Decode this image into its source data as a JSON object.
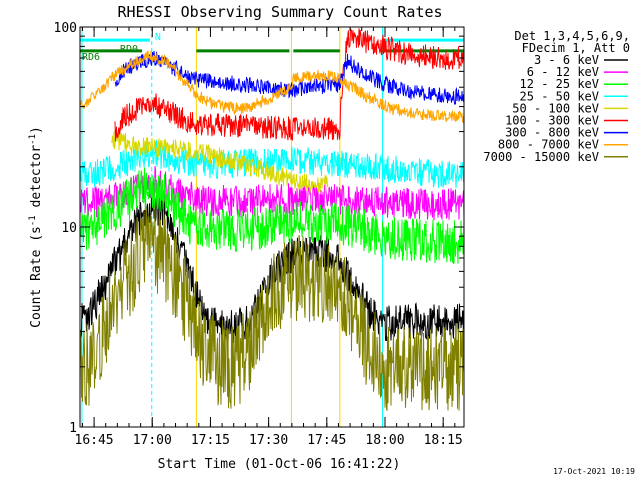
{
  "chart_data": {
    "type": "line",
    "title": "RHESSI Observing Summary Count Rates",
    "xlabel": "Start Time (01-Oct-06 16:41:22)",
    "ylabel_parts": [
      "Count Rate (s",
      "-1",
      " detector",
      "-1",
      ")"
    ],
    "y_scale": "log",
    "ylim": [
      1,
      100
    ],
    "xlim_minutes": [
      0,
      99
    ],
    "y_tick_labels": [
      "1",
      "10",
      "100"
    ],
    "x_ticks": [
      {
        "min": 3.63,
        "label": "16:45"
      },
      {
        "min": 18.63,
        "label": "17:00"
      },
      {
        "min": 33.63,
        "label": "17:15"
      },
      {
        "min": 48.63,
        "label": "17:30"
      },
      {
        "min": 63.63,
        "label": "17:45"
      },
      {
        "min": 78.63,
        "label": "18:00"
      },
      {
        "min": 93.63,
        "label": "18:15"
      }
    ],
    "legend_header": [
      "Det 1,3,4,5,6,9,",
      "FDecim 1, Att 0"
    ],
    "series": [
      {
        "name": "3 - 6 keV",
        "color": "#000000",
        "values": [
          [
            0,
            3.3
          ],
          [
            3,
            3.8
          ],
          [
            7,
            5.4
          ],
          [
            12,
            8.5
          ],
          [
            16,
            11.5
          ],
          [
            19,
            12.8
          ],
          [
            22,
            12
          ],
          [
            26,
            7.5
          ],
          [
            30,
            4.5
          ],
          [
            33,
            3.3
          ],
          [
            36,
            3.2
          ],
          [
            40,
            3.1
          ],
          [
            44,
            3.5
          ],
          [
            48,
            4.8
          ],
          [
            52,
            6.6
          ],
          [
            56,
            7.4
          ],
          [
            62,
            7.4
          ],
          [
            66,
            7.2
          ],
          [
            70,
            5.2
          ],
          [
            74,
            3.9
          ],
          [
            78,
            3.3
          ],
          [
            82,
            3.3
          ],
          [
            88,
            3.4
          ],
          [
            94,
            3.4
          ],
          [
            99,
            3.4
          ]
        ]
      },
      {
        "name": "6 - 12 keV",
        "color": "#ff00ff",
        "values": [
          [
            0,
            13
          ],
          [
            6,
            13.5
          ],
          [
            12,
            14.8
          ],
          [
            16,
            16
          ],
          [
            19,
            17
          ],
          [
            22,
            16
          ],
          [
            26,
            14.5
          ],
          [
            30,
            13.8
          ],
          [
            34,
            13.5
          ],
          [
            45,
            13.5
          ],
          [
            52,
            13.8
          ],
          [
            60,
            13.8
          ],
          [
            68,
            13.7
          ],
          [
            76,
            13.4
          ],
          [
            84,
            13.2
          ],
          [
            90,
            13
          ],
          [
            99,
            13
          ]
        ]
      },
      {
        "name": "12 - 25 keV",
        "color": "#00ff00",
        "values": [
          [
            0,
            9.2
          ],
          [
            4,
            10
          ],
          [
            9,
            12
          ],
          [
            14,
            14.5
          ],
          [
            18,
            16
          ],
          [
            21,
            15
          ],
          [
            25,
            12
          ],
          [
            29,
            10.2
          ],
          [
            34,
            9.7
          ],
          [
            45,
            9.8
          ],
          [
            52,
            10.2
          ],
          [
            58,
            10.5
          ],
          [
            66,
            10.5
          ],
          [
            72,
            9.8
          ],
          [
            78,
            9
          ],
          [
            86,
            8.6
          ],
          [
            92,
            8.5
          ],
          [
            99,
            8.4
          ]
        ]
      },
      {
        "name": "25 - 50 keV",
        "color": "#00ffff",
        "values": [
          [
            0,
            18
          ],
          [
            6,
            19
          ],
          [
            12,
            21
          ],
          [
            16,
            22.5
          ],
          [
            19,
            23.5
          ],
          [
            22,
            22.5
          ],
          [
            28,
            21
          ],
          [
            34,
            20.5
          ],
          [
            45,
            21
          ],
          [
            55,
            21.5
          ],
          [
            65,
            21
          ],
          [
            75,
            20
          ],
          [
            85,
            19
          ],
          [
            99,
            18
          ]
        ]
      },
      {
        "name": "50 - 100 keV",
        "color": "#d8d800",
        "values": [
          [
            8,
            28
          ],
          [
            10,
            27
          ],
          [
            14,
            25.5
          ],
          [
            19,
            25
          ],
          [
            24,
            24.5
          ],
          [
            28,
            24
          ],
          [
            30,
            24
          ],
          [
            55,
            17
          ],
          [
            57,
            16.5
          ],
          [
            64,
            16.5
          ]
        ]
      },
      {
        "name": "100 - 300 keV",
        "color": "#ff0000",
        "values": [
          [
            9,
            30
          ],
          [
            12,
            36
          ],
          [
            16,
            40
          ],
          [
            19,
            41
          ],
          [
            22,
            39
          ],
          [
            26,
            35
          ],
          [
            29,
            33
          ],
          [
            55,
            31
          ],
          [
            60,
            31
          ],
          [
            65,
            31
          ],
          [
            67,
            31
          ],
          [
            69,
            90
          ],
          [
            72,
            86
          ],
          [
            76,
            82
          ],
          [
            80,
            78
          ],
          [
            84,
            74
          ],
          [
            88,
            72
          ],
          [
            92,
            70
          ],
          [
            96,
            70
          ],
          [
            99,
            70
          ]
        ]
      },
      {
        "name": "300 - 800 keV",
        "color": "#0000ff",
        "values": [
          [
            9,
            54
          ],
          [
            12,
            62
          ],
          [
            16,
            68
          ],
          [
            19,
            70
          ],
          [
            22,
            66
          ],
          [
            26,
            60
          ],
          [
            29,
            55
          ],
          [
            55,
            48
          ],
          [
            59,
            50
          ],
          [
            64,
            51
          ],
          [
            67,
            51
          ],
          [
            69,
            68
          ],
          [
            72,
            60
          ],
          [
            78,
            52
          ],
          [
            84,
            48
          ],
          [
            90,
            46
          ],
          [
            95,
            45
          ],
          [
            99,
            45
          ]
        ]
      },
      {
        "name": "800 - 7000 keV",
        "color": "#ffa500",
        "values": [
          [
            0,
            40
          ],
          [
            4,
            45
          ],
          [
            8,
            55
          ],
          [
            13,
            65
          ],
          [
            18,
            72
          ],
          [
            22,
            68
          ],
          [
            26,
            56
          ],
          [
            30,
            46
          ],
          [
            34,
            41
          ],
          [
            40,
            39
          ],
          [
            44,
            40
          ],
          [
            48,
            43
          ],
          [
            52,
            47
          ],
          [
            54,
            49
          ],
          [
            55,
            55
          ],
          [
            60,
            57
          ],
          [
            64,
            57
          ],
          [
            67,
            55
          ],
          [
            69,
            52
          ],
          [
            74,
            45
          ],
          [
            80,
            39
          ],
          [
            86,
            37
          ],
          [
            92,
            36
          ],
          [
            99,
            35.5
          ]
        ]
      },
      {
        "name": "7000 - 15000 keV",
        "color": "#808000",
        "values": [
          [
            0,
            2
          ],
          [
            4,
            2.2
          ],
          [
            7,
            3.5
          ],
          [
            12,
            5.5
          ],
          [
            16,
            7.3
          ],
          [
            19,
            8
          ],
          [
            22,
            7
          ],
          [
            26,
            4.8
          ],
          [
            30,
            3
          ],
          [
            33,
            2.2
          ],
          [
            40,
            2
          ],
          [
            44,
            2.5
          ],
          [
            48,
            3.8
          ],
          [
            52,
            5.2
          ],
          [
            56,
            5.5
          ],
          [
            62,
            5.5
          ],
          [
            66,
            5.2
          ],
          [
            70,
            3.8
          ],
          [
            74,
            2.6
          ],
          [
            78,
            2
          ],
          [
            88,
            2
          ],
          [
            99,
            2
          ]
        ]
      }
    ],
    "state_labels": [
      "RD0",
      "N",
      "RD6"
    ],
    "state_bars": [
      {
        "color": "#00ffff",
        "segments": [
          [
            0,
            18
          ],
          [
            78,
            99
          ]
        ],
        "level": 86
      },
      {
        "color": "#008000",
        "segments": [
          [
            0,
            16
          ],
          [
            30,
            54
          ],
          [
            55,
            67
          ],
          [
            78,
            99
          ]
        ],
        "level": 76
      }
    ]
  },
  "footer": {
    "timestamp": "17-Oct-2021 10:19"
  }
}
